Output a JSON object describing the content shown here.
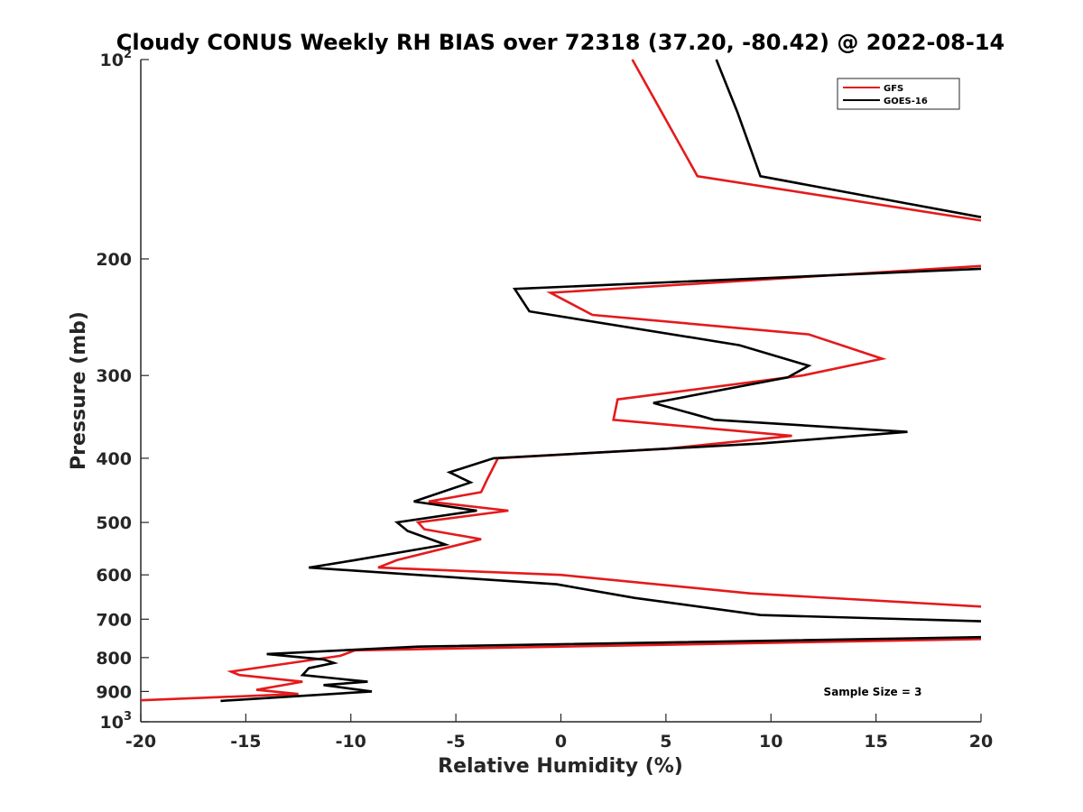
{
  "chart_data": {
    "type": "line",
    "title": "Cloudy CONUS Weekly RH BIAS over 72318 (37.20, -80.42) @ 2022-08-14",
    "xlabel": "Relative Humidity (%)",
    "ylabel": "Pressure (mb)",
    "xlim": [
      -20,
      20
    ],
    "ylim": [
      100,
      1000
    ],
    "yscale": "log",
    "y_reversed": true,
    "x_ticks": [
      -20,
      -15,
      -10,
      -5,
      0,
      5,
      10,
      15,
      20
    ],
    "x_tick_labels": [
      "-20",
      "-15",
      "-10",
      "-5",
      "0",
      "5",
      "10",
      "15",
      "20"
    ],
    "y_ticks": [
      100,
      200,
      300,
      400,
      500,
      600,
      700,
      800,
      900,
      1000
    ],
    "y_tick_labels": [
      "",
      "200",
      "300",
      "400",
      "500",
      "600",
      "700",
      "800",
      "900",
      ""
    ],
    "y_tick_label_top": {
      "base": "10",
      "exp": "2"
    },
    "y_tick_label_bottom": {
      "base": "10",
      "exp": "3"
    },
    "legend_location": "top-right",
    "annotation": "Sample Size = 3",
    "series": [
      {
        "name": "GFS",
        "color": "#e41a1c",
        "points": [
          [
            3.4,
            100
          ],
          [
            6.5,
            150
          ],
          [
            20,
            175
          ],
          [
            null,
            200
          ],
          [
            20,
            205
          ],
          [
            -0.5,
            225
          ],
          [
            1.5,
            243
          ],
          [
            11.8,
            260
          ],
          [
            15.3,
            283
          ],
          [
            11.5,
            300
          ],
          [
            2.7,
            326
          ],
          [
            2.5,
            350
          ],
          [
            11.0,
            370
          ],
          [
            5.0,
            387
          ],
          [
            -3.0,
            400
          ],
          [
            -3.5,
            430
          ],
          [
            -3.8,
            450
          ],
          [
            -6.3,
            465
          ],
          [
            -2.5,
            480
          ],
          [
            -6.8,
            500
          ],
          [
            -6.5,
            512
          ],
          [
            -3.8,
            530
          ],
          [
            -7.8,
            570
          ],
          [
            -8.7,
            585
          ],
          [
            0.0,
            600
          ],
          [
            9.0,
            640
          ],
          [
            20,
            670
          ],
          [
            null,
            700
          ],
          [
            20,
            750
          ],
          [
            -9.8,
            780
          ],
          [
            -10.5,
            795
          ],
          [
            -15.7,
            840
          ],
          [
            -15.3,
            850
          ],
          [
            -12.3,
            870
          ],
          [
            -14.5,
            895
          ],
          [
            -12.5,
            908
          ],
          [
            -20,
            928
          ]
        ]
      },
      {
        "name": "GOES-16",
        "color": "#000000",
        "points": [
          [
            7.4,
            100
          ],
          [
            8.4,
            120
          ],
          [
            9.5,
            150
          ],
          [
            16.5,
            165
          ],
          [
            20,
            173
          ],
          [
            null,
            200
          ],
          [
            20,
            207
          ],
          [
            -2.2,
            222
          ],
          [
            -1.5,
            240
          ],
          [
            8.5,
            270
          ],
          [
            11.8,
            290
          ],
          [
            10.8,
            302
          ],
          [
            4.4,
            330
          ],
          [
            7.3,
            350
          ],
          [
            16.5,
            365
          ],
          [
            9.5,
            380
          ],
          [
            -3.2,
            400
          ],
          [
            -5.3,
            420
          ],
          [
            -4.3,
            435
          ],
          [
            -7.0,
            465
          ],
          [
            -4.0,
            480
          ],
          [
            -7.8,
            500
          ],
          [
            -7.3,
            515
          ],
          [
            -5.5,
            540
          ],
          [
            -9.8,
            570
          ],
          [
            -12.0,
            585
          ],
          [
            -0.2,
            620
          ],
          [
            3.5,
            650
          ],
          [
            9.5,
            690
          ],
          [
            20,
            705
          ],
          [
            null,
            720
          ],
          [
            20,
            745
          ],
          [
            -6.8,
            770
          ],
          [
            -14.0,
            790
          ],
          [
            -11.3,
            805
          ],
          [
            -10.8,
            815
          ],
          [
            -12.0,
            830
          ],
          [
            -12.3,
            850
          ],
          [
            -9.2,
            870
          ],
          [
            -11.3,
            880
          ],
          [
            -9.0,
            900
          ],
          [
            -16.2,
            930
          ]
        ]
      }
    ]
  }
}
